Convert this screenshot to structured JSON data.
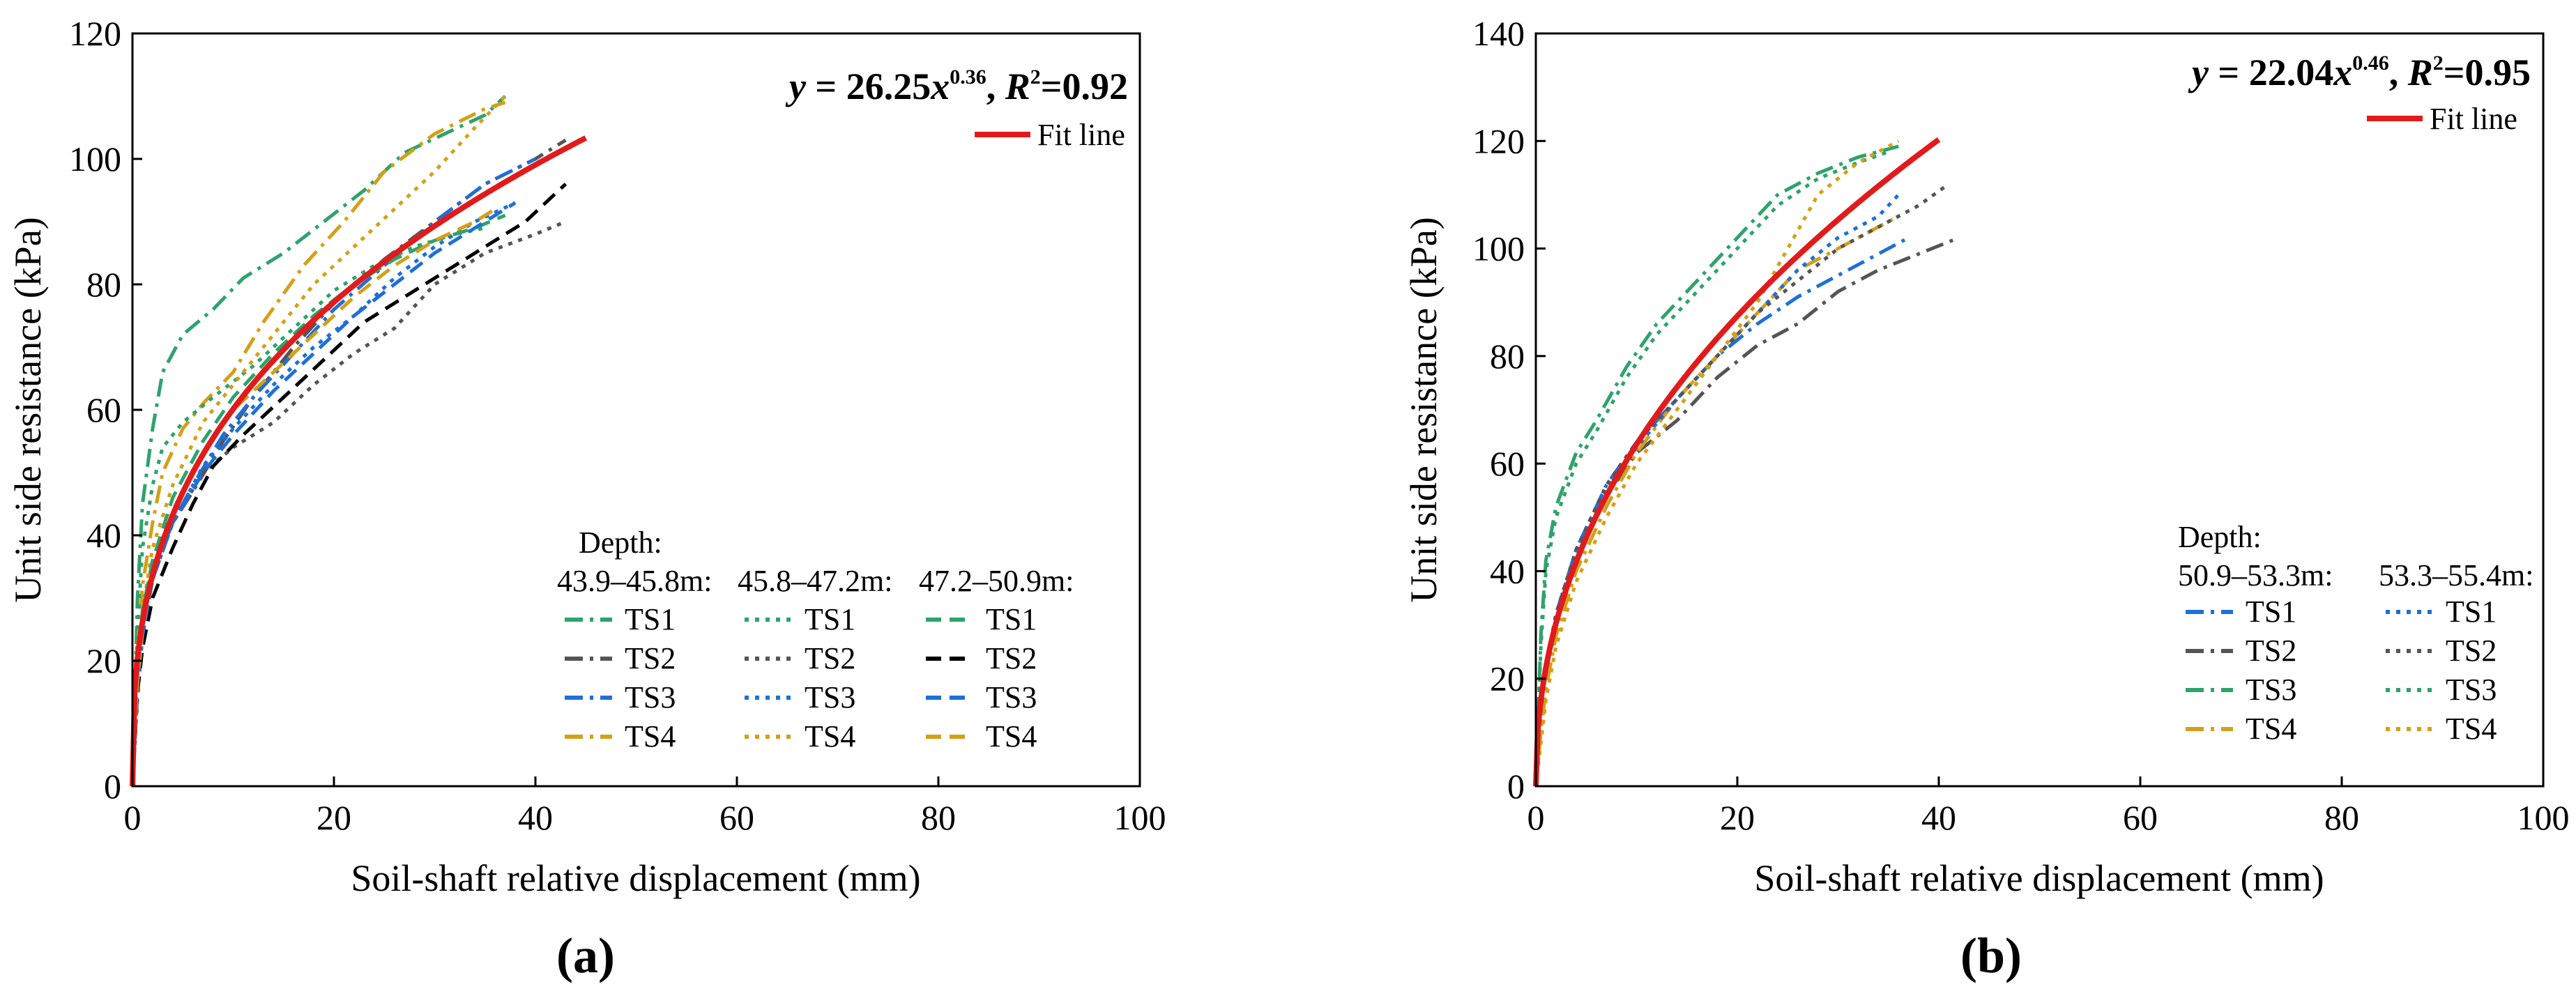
{
  "chart_data": [
    {
      "type": "line",
      "panel_label": "(a)",
      "xlabel": "Soil-shaft relative displacement (mm)",
      "ylabel": "Unit side resistance (kPa)",
      "xlim": [
        0,
        100
      ],
      "ylim": [
        0,
        120
      ],
      "xticks": [
        0,
        20,
        40,
        60,
        80,
        100
      ],
      "yticks": [
        0,
        20,
        40,
        60,
        80,
        100,
        120
      ],
      "equation": {
        "lhs": "y",
        "eq": " = ",
        "coef": "26.25",
        "var": "x",
        "exp": "0.36",
        "sep": ", ",
        "rsym": "R",
        "rsq_exp": "2",
        "rval": "=0.92"
      },
      "fit_label": "Fit line",
      "fit": {
        "coef": 26.25,
        "exp": 0.36,
        "x_max": 45
      },
      "legend": {
        "title": "Depth:",
        "groups": [
          "43.9–45.8m:",
          "45.8–47.2m:",
          "47.2–50.9m:"
        ],
        "labels": [
          "TS1",
          "TS2",
          "TS3",
          "TS4"
        ]
      },
      "colors": {
        "TS1": "#2ea36b",
        "TS2": "#555555",
        "TS3": "#1f6fd6",
        "TS4": "#d4a017",
        "fit": "#e11b1b",
        "black": "#000000"
      },
      "series": [
        {
          "group": 0,
          "name": "TS1",
          "color": "#2ea36b",
          "dash": "dashdot",
          "x": [
            0,
            0.5,
            1,
            2,
            3,
            5,
            8,
            11,
            15,
            19,
            23,
            27,
            31,
            35,
            37
          ],
          "y": [
            0,
            30,
            45,
            57,
            66,
            72,
            76,
            81,
            85,
            90,
            95,
            101,
            104,
            107,
            110
          ]
        },
        {
          "group": 0,
          "name": "TS2",
          "color": "#555555",
          "dash": "dashdot",
          "x": [
            0,
            0.5,
            1,
            2,
            4,
            6,
            9,
            12,
            16,
            20,
            25,
            30,
            35,
            40,
            43
          ],
          "y": [
            0,
            20,
            28,
            35,
            42,
            47,
            55,
            62,
            70,
            77,
            84,
            90,
            96,
            100,
            103
          ]
        },
        {
          "group": 0,
          "name": "TS3",
          "color": "#1f6fd6",
          "dash": "dashdot",
          "x": [
            0,
            0.5,
            1,
            2,
            4,
            6,
            9,
            12,
            16,
            20,
            25,
            30,
            35,
            40
          ],
          "y": [
            0,
            18,
            27,
            34,
            42,
            48,
            56,
            62,
            69,
            76,
            83,
            90,
            96,
            100
          ]
        },
        {
          "group": 0,
          "name": "TS4",
          "color": "#d4a017",
          "dash": "dashdot",
          "x": [
            0,
            0.5,
            1,
            2,
            3,
            5,
            7,
            10,
            13,
            17,
            21,
            25,
            30,
            35,
            37
          ],
          "y": [
            0,
            22,
            32,
            42,
            50,
            57,
            61,
            66,
            74,
            83,
            90,
            98,
            104,
            108,
            109
          ]
        },
        {
          "group": 1,
          "name": "TS1",
          "color": "#2ea36b",
          "dash": "dotted",
          "x": [
            0,
            0.5,
            1,
            2,
            3,
            5,
            8,
            12,
            16,
            20,
            24,
            28,
            32,
            35
          ],
          "y": [
            0,
            25,
            38,
            48,
            54,
            58,
            62,
            67,
            73,
            79,
            83,
            86,
            88,
            89
          ]
        },
        {
          "group": 1,
          "name": "TS2",
          "color": "#555555",
          "dash": "dotted",
          "x": [
            0,
            0.5,
            1,
            2,
            4,
            7,
            10,
            14,
            18,
            22,
            26,
            30,
            35,
            40,
            43
          ],
          "y": [
            0,
            14,
            24,
            33,
            42,
            50,
            54,
            58,
            64,
            69,
            73,
            80,
            85,
            88,
            90
          ]
        },
        {
          "group": 1,
          "name": "TS3",
          "color": "#1f6fd6",
          "dash": "dotted",
          "x": [
            0,
            0.5,
            1,
            2,
            4,
            7,
            10,
            14,
            18,
            22,
            26,
            30,
            34,
            38
          ],
          "y": [
            0,
            15,
            24,
            33,
            42,
            51,
            57,
            64,
            70,
            75,
            81,
            86,
            90,
            93
          ]
        },
        {
          "group": 1,
          "name": "TS4",
          "color": "#d4a017",
          "dash": "dotted",
          "x": [
            0,
            0.5,
            1,
            2,
            4,
            7,
            10,
            14,
            18,
            22,
            26,
            30,
            34,
            37
          ],
          "y": [
            0,
            18,
            28,
            38,
            48,
            58,
            64,
            72,
            80,
            86,
            92,
            98,
            105,
            110
          ]
        },
        {
          "group": 2,
          "name": "TS1",
          "color": "#2ea36b",
          "dash": "dashed",
          "x": [
            0,
            0.5,
            1,
            2,
            4,
            7,
            10,
            14,
            18,
            22,
            26,
            30,
            34,
            37
          ],
          "y": [
            0,
            18,
            28,
            36,
            46,
            55,
            62,
            69,
            75,
            80,
            84,
            87,
            89,
            91
          ]
        },
        {
          "group": 2,
          "name": "TS2",
          "color": "#000000",
          "dash": "dashed",
          "x": [
            0,
            0.5,
            1,
            2,
            4,
            6,
            8,
            11,
            15,
            19,
            23,
            27,
            31,
            35,
            39,
            43
          ],
          "y": [
            0,
            15,
            22,
            30,
            38,
            45,
            51,
            56,
            62,
            68,
            74,
            78,
            82,
            86,
            90,
            96
          ]
        },
        {
          "group": 2,
          "name": "TS3",
          "color": "#1f6fd6",
          "dash": "dashed",
          "x": [
            0,
            0.5,
            1,
            2,
            4,
            7,
            10,
            14,
            18,
            22,
            26,
            30,
            34,
            38
          ],
          "y": [
            0,
            16,
            24,
            33,
            42,
            50,
            56,
            63,
            69,
            75,
            80,
            85,
            89,
            93
          ]
        },
        {
          "group": 2,
          "name": "TS4",
          "color": "#d4a017",
          "dash": "dashed",
          "x": [
            0,
            0.5,
            1,
            2,
            4,
            7,
            10,
            14,
            18,
            22,
            26,
            30,
            34,
            36
          ],
          "y": [
            0,
            17,
            25,
            34,
            44,
            53,
            60,
            66,
            72,
            78,
            83,
            87,
            90,
            92
          ]
        }
      ]
    },
    {
      "type": "line",
      "panel_label": "(b)",
      "xlabel": "Soil-shaft relative displacement (mm)",
      "ylabel": "Unit side resistance (kPa)",
      "xlim": [
        0,
        100
      ],
      "ylim": [
        0,
        140
      ],
      "xticks": [
        0,
        20,
        40,
        60,
        80,
        100
      ],
      "yticks": [
        0,
        20,
        40,
        60,
        80,
        100,
        120,
        140
      ],
      "equation": {
        "lhs": "y",
        "eq": " = ",
        "coef": "22.04",
        "var": "x",
        "exp": "0.46",
        "sep": ", ",
        "rsym": "R",
        "rsq_exp": "2",
        "rval": "=0.95"
      },
      "fit_label": "Fit line",
      "fit": {
        "coef": 22.04,
        "exp": 0.46,
        "x_max": 40
      },
      "legend": {
        "title": "Depth:",
        "groups": [
          "50.9–53.3m:",
          "53.3–55.4m:"
        ],
        "labels": [
          "TS1",
          "TS2",
          "TS3",
          "TS4"
        ]
      },
      "colors": {
        "TS1": "#1f6fd6",
        "TS2": "#555555",
        "TS3": "#2ea36b",
        "TS4": "#d4a017",
        "fit": "#e11b1b"
      },
      "series": [
        {
          "group": 0,
          "name": "TS1",
          "color": "#1f6fd6",
          "dash": "dashdot",
          "x": [
            0,
            0.5,
            1,
            2,
            4,
            7,
            10,
            14,
            18,
            22,
            26,
            30,
            34,
            37
          ],
          "y": [
            0,
            15,
            22,
            32,
            44,
            56,
            64,
            72,
            80,
            86,
            91,
            95,
            99,
            102
          ]
        },
        {
          "group": 0,
          "name": "TS2",
          "color": "#555555",
          "dash": "dashdot",
          "x": [
            0,
            0.5,
            1,
            2,
            4,
            7,
            10,
            14,
            18,
            22,
            26,
            30,
            34,
            38,
            42
          ],
          "y": [
            0,
            12,
            20,
            30,
            42,
            54,
            62,
            68,
            76,
            82,
            86,
            92,
            96,
            99,
            102
          ]
        },
        {
          "group": 0,
          "name": "TS3",
          "color": "#2ea36b",
          "dash": "dashdot",
          "x": [
            0,
            0.5,
            1,
            2,
            4,
            6,
            9,
            12,
            16,
            20,
            24,
            28,
            32,
            36
          ],
          "y": [
            0,
            28,
            42,
            52,
            62,
            68,
            78,
            86,
            94,
            102,
            110,
            114,
            117,
            119
          ]
        },
        {
          "group": 0,
          "name": "TS4",
          "color": "#d4a017",
          "dash": "dashdot",
          "x": [
            0,
            0.5,
            1,
            2,
            4,
            7,
            10,
            14,
            18,
            22,
            26,
            30,
            33,
            36
          ],
          "y": [
            0,
            10,
            18,
            28,
            40,
            52,
            62,
            72,
            80,
            88,
            96,
            100,
            103,
            106
          ]
        },
        {
          "group": 1,
          "name": "TS1",
          "color": "#1f6fd6",
          "dash": "dotted",
          "x": [
            0,
            0.5,
            1,
            2,
            4,
            7,
            10,
            14,
            18,
            22,
            26,
            30,
            34,
            36
          ],
          "y": [
            0,
            14,
            22,
            32,
            44,
            55,
            63,
            72,
            80,
            88,
            96,
            102,
            106,
            110
          ]
        },
        {
          "group": 1,
          "name": "TS2",
          "color": "#555555",
          "dash": "dotted",
          "x": [
            0,
            0.5,
            1,
            2,
            4,
            7,
            10,
            14,
            18,
            22,
            26,
            30,
            34,
            38,
            41
          ],
          "y": [
            0,
            14,
            22,
            32,
            44,
            56,
            64,
            72,
            80,
            88,
            94,
            100,
            104,
            108,
            112
          ]
        },
        {
          "group": 1,
          "name": "TS3",
          "color": "#2ea36b",
          "dash": "dotted",
          "x": [
            0,
            0.5,
            1,
            2,
            4,
            6,
            9,
            12,
            16,
            20,
            24,
            28,
            32,
            35
          ],
          "y": [
            0,
            26,
            40,
            50,
            60,
            66,
            76,
            84,
            92,
            100,
            108,
            113,
            116,
            118
          ]
        },
        {
          "group": 1,
          "name": "TS4",
          "color": "#d4a017",
          "dash": "dotted",
          "x": [
            0,
            0.5,
            1,
            2,
            4,
            7,
            10,
            14,
            18,
            22,
            25,
            28,
            32,
            36
          ],
          "y": [
            0,
            8,
            16,
            26,
            38,
            50,
            60,
            70,
            80,
            90,
            100,
            110,
            116,
            120
          ]
        }
      ]
    }
  ]
}
